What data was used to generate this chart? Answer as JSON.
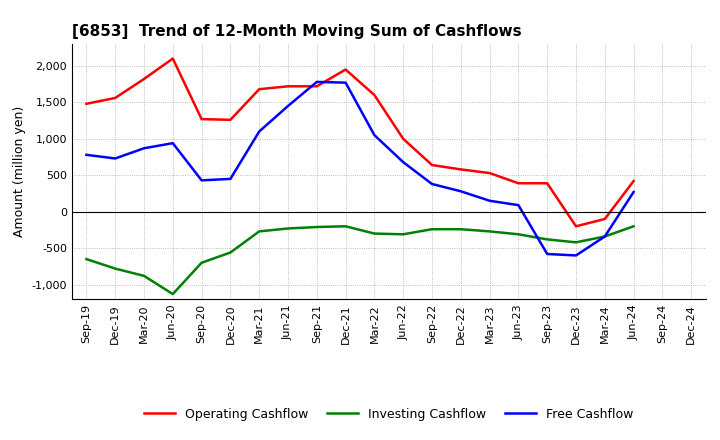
{
  "title": "[6853]  Trend of 12-Month Moving Sum of Cashflows",
  "ylabel": "Amount (million yen)",
  "xlabels": [
    "Sep-19",
    "Dec-19",
    "Mar-20",
    "Jun-20",
    "Sep-20",
    "Dec-20",
    "Mar-21",
    "Jun-21",
    "Sep-21",
    "Dec-21",
    "Mar-22",
    "Jun-22",
    "Sep-22",
    "Dec-22",
    "Mar-23",
    "Jun-23",
    "Sep-23",
    "Dec-23",
    "Mar-24",
    "Jun-24",
    "Sep-24",
    "Dec-24"
  ],
  "operating": [
    1480,
    1560,
    1820,
    2100,
    1270,
    1260,
    1680,
    1720,
    1720,
    1950,
    1600,
    1000,
    640,
    580,
    530,
    390,
    390,
    -200,
    -100,
    420,
    null,
    null
  ],
  "investing": [
    -650,
    -780,
    -880,
    -1130,
    -700,
    -560,
    -270,
    -230,
    -210,
    -200,
    -300,
    -310,
    -240,
    -240,
    -270,
    -310,
    -380,
    -420,
    -340,
    -200,
    null,
    null
  ],
  "free": [
    780,
    730,
    870,
    940,
    430,
    450,
    1100,
    1450,
    1780,
    1770,
    1050,
    680,
    380,
    280,
    150,
    90,
    -580,
    -600,
    -340,
    270,
    null,
    null
  ],
  "ylim": [
    -1200,
    2300
  ],
  "yticks": [
    -1000,
    -500,
    0,
    500,
    1000,
    1500,
    2000
  ],
  "operating_color": "#FF0000",
  "investing_color": "#008000",
  "free_color": "#0000FF",
  "bg_color": "#FFFFFF",
  "grid_color": "#AAAAAA",
  "line_width": 1.8,
  "title_fontsize": 11,
  "ylabel_fontsize": 9,
  "tick_fontsize": 8,
  "legend_fontsize": 9
}
